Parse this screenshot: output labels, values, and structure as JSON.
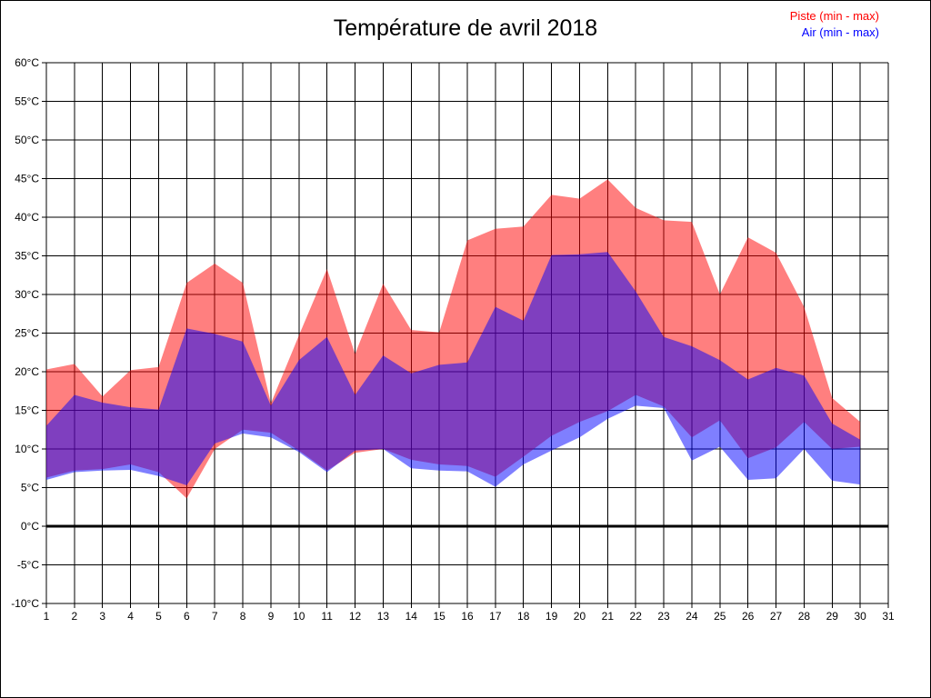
{
  "title": "Température de avril 2018",
  "legend": {
    "piste_label": "Piste (min - max)",
    "air_label": "Air (min - max)"
  },
  "colors": {
    "piste_text": "#ff0000",
    "air_text": "#0000ff",
    "piste_fill": "rgba(255,0,0,0.5)",
    "air_fill": "rgba(0,0,255,0.5)",
    "grid": "#000000",
    "background": "#ffffff"
  },
  "chart_data": {
    "type": "area",
    "title": "Température de avril 2018",
    "xlabel": "",
    "ylabel": "",
    "xlim": [
      1,
      31
    ],
    "ylim": [
      -10,
      60
    ],
    "y_tick_step": 5,
    "y_tick_suffix": "°C",
    "x_ticks": [
      1,
      2,
      3,
      4,
      5,
      6,
      7,
      8,
      9,
      10,
      11,
      12,
      13,
      14,
      15,
      16,
      17,
      18,
      19,
      20,
      21,
      22,
      23,
      24,
      25,
      26,
      27,
      28,
      29,
      30,
      31
    ],
    "grid": true,
    "zero_line_bold": true,
    "legend_position": "top-right",
    "days": [
      1,
      2,
      3,
      4,
      5,
      6,
      7,
      8,
      9,
      10,
      11,
      12,
      13,
      14,
      15,
      16,
      17,
      18,
      19,
      20,
      21,
      22,
      23,
      24,
      25,
      26,
      27,
      28,
      29,
      30
    ],
    "series": [
      {
        "name": "Piste (min - max)",
        "color": "#ff0000",
        "fill": "rgba(255,0,0,0.5)",
        "max": [
          20.3,
          21.0,
          16.8,
          20.2,
          20.6,
          31.5,
          34.0,
          31.5,
          15.9,
          24.7,
          33.3,
          22.3,
          31.4,
          25.4,
          25.1,
          37.0,
          38.5,
          38.8,
          42.9,
          42.4,
          44.9,
          41.2,
          39.6,
          39.4,
          30.0,
          37.4,
          35.4,
          28.4,
          16.6,
          13.5
        ],
        "min": [
          6.3,
          7.2,
          7.4,
          8.0,
          7.0,
          3.6,
          10.0,
          12.5,
          12.1,
          9.8,
          7.2,
          9.5,
          10.0,
          8.6,
          8.0,
          7.8,
          6.4,
          9.0,
          11.7,
          13.5,
          14.9,
          17.0,
          15.5,
          11.5,
          13.7,
          8.8,
          10.2,
          13.5,
          10.0,
          10.3
        ]
      },
      {
        "name": "Air (min - max)",
        "color": "#0000ff",
        "fill": "rgba(0,0,255,0.5)",
        "max": [
          13.0,
          17.0,
          16.0,
          15.4,
          15.1,
          25.6,
          24.9,
          23.9,
          15.6,
          21.5,
          24.5,
          17.0,
          22.1,
          19.8,
          20.9,
          21.2,
          28.4,
          26.6,
          35.1,
          35.2,
          35.5,
          30.4,
          24.5,
          23.3,
          21.5,
          19.0,
          20.5,
          19.5,
          13.3,
          11.2
        ],
        "min": [
          6.0,
          7.0,
          7.2,
          7.3,
          6.5,
          5.3,
          10.7,
          12.0,
          11.5,
          9.6,
          7.0,
          9.8,
          10.0,
          7.5,
          7.2,
          7.1,
          5.1,
          8.0,
          9.8,
          11.5,
          13.9,
          15.6,
          15.3,
          8.5,
          10.3,
          6.0,
          6.2,
          10.0,
          5.9,
          5.4
        ]
      }
    ]
  }
}
